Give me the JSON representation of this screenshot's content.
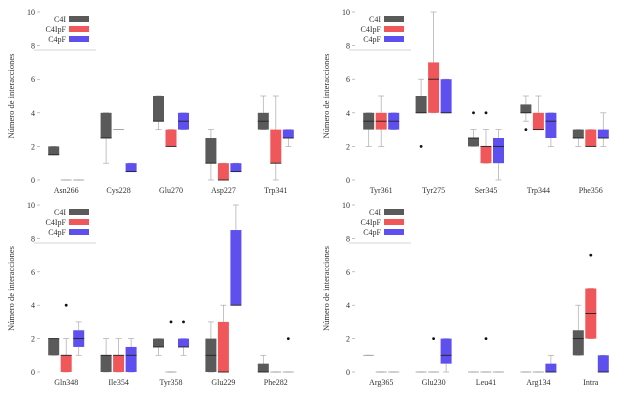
{
  "chart_data": [
    {
      "type": "box",
      "ylabel": "Número de interacciones",
      "ylim": [
        0,
        10
      ],
      "yticks": [
        0,
        2,
        4,
        6,
        8,
        10
      ],
      "legend": {
        "placement": "top-left",
        "entries": [
          "C4I",
          "C4IpF",
          "C4pF"
        ]
      },
      "colors": {
        "C4I": "#5a5a5a",
        "C4IpF": "#f0575a",
        "C4pF": "#5d50ee"
      },
      "categories": [
        "Asn266",
        "Cys228",
        "Glu270",
        "Asp227",
        "Trp341"
      ],
      "series": [
        {
          "name": "C4I",
          "boxes": [
            {
              "min": 1.5,
              "q1": 1.5,
              "median": 1.5,
              "q3": 2,
              "max": 2,
              "outliers": []
            },
            {
              "min": 1,
              "q1": 2.5,
              "median": 2.5,
              "q3": 4,
              "max": 4,
              "outliers": []
            },
            {
              "min": 3,
              "q1": 3.5,
              "median": 3.5,
              "q3": 5,
              "max": 5,
              "outliers": []
            },
            {
              "min": 0,
              "q1": 1,
              "median": 1,
              "q3": 2.5,
              "max": 3,
              "outliers": []
            },
            {
              "min": 3,
              "q1": 3,
              "median": 3.5,
              "q3": 4,
              "max": 5,
              "outliers": []
            }
          ]
        },
        {
          "name": "C4IpF",
          "boxes": [
            {
              "min": 0,
              "q1": 0,
              "median": 0,
              "q3": 0,
              "max": 0,
              "outliers": []
            },
            {
              "min": 3,
              "q1": 3,
              "median": 3,
              "q3": 3,
              "max": 3,
              "outliers": []
            },
            {
              "min": 2,
              "q1": 2,
              "median": 2,
              "q3": 3,
              "max": 3,
              "outliers": []
            },
            {
              "min": 0,
              "q1": 0,
              "median": 0,
              "q3": 1,
              "max": 1,
              "outliers": []
            },
            {
              "min": 0,
              "q1": 1,
              "median": 1,
              "q3": 3,
              "max": 5,
              "outliers": []
            }
          ]
        },
        {
          "name": "C4pF",
          "boxes": [
            {
              "min": 0,
              "q1": 0,
              "median": 0,
              "q3": 0,
              "max": 0,
              "outliers": []
            },
            {
              "min": 0.5,
              "q1": 0.5,
              "median": 0.5,
              "q3": 1,
              "max": 1,
              "outliers": []
            },
            {
              "min": 3,
              "q1": 3,
              "median": 3.5,
              "q3": 4,
              "max": 4,
              "outliers": []
            },
            {
              "min": 0.5,
              "q1": 0.5,
              "median": 0.5,
              "q3": 1,
              "max": 1,
              "outliers": []
            },
            {
              "min": 2,
              "q1": 2.5,
              "median": 2.5,
              "q3": 3,
              "max": 3,
              "outliers": []
            }
          ]
        }
      ]
    },
    {
      "type": "box",
      "ylabel": "Número de interacciones",
      "ylim": [
        0,
        10
      ],
      "yticks": [
        0,
        2,
        4,
        6,
        8,
        10
      ],
      "legend": {
        "placement": "top-left",
        "entries": [
          "C4I",
          "C4IpF",
          "C4pF"
        ]
      },
      "colors": {
        "C4I": "#5a5a5a",
        "C4IpF": "#f0575a",
        "C4pF": "#5d50ee"
      },
      "categories": [
        "Tyr361",
        "Tyr275",
        "Ser345",
        "Trp344",
        "Phe356"
      ],
      "series": [
        {
          "name": "C4I",
          "boxes": [
            {
              "min": 2,
              "q1": 3,
              "median": 3.5,
              "q3": 4,
              "max": 4,
              "outliers": []
            },
            {
              "min": 4,
              "q1": 4,
              "median": 4,
              "q3": 5,
              "max": 6,
              "outliers": [
                2
              ]
            },
            {
              "min": 2,
              "q1": 2,
              "median": 2.5,
              "q3": 2.5,
              "max": 3,
              "outliers": [
                4
              ]
            },
            {
              "min": 3.5,
              "q1": 4,
              "median": 4,
              "q3": 4.5,
              "max": 5,
              "outliers": [
                3
              ]
            },
            {
              "min": 2,
              "q1": 2.5,
              "median": 2.5,
              "q3": 3,
              "max": 3,
              "outliers": []
            }
          ]
        },
        {
          "name": "C4IpF",
          "boxes": [
            {
              "min": 2,
              "q1": 3,
              "median": 3.5,
              "q3": 4,
              "max": 5,
              "outliers": []
            },
            {
              "min": 4,
              "q1": 4,
              "median": 6,
              "q3": 7,
              "max": 10,
              "outliers": []
            },
            {
              "min": 1,
              "q1": 1,
              "median": 2,
              "q3": 2,
              "max": 3,
              "outliers": [
                4
              ]
            },
            {
              "min": 3,
              "q1": 3,
              "median": 3,
              "q3": 4,
              "max": 5,
              "outliers": []
            },
            {
              "min": 2,
              "q1": 2,
              "median": 2,
              "q3": 3,
              "max": 3,
              "outliers": []
            }
          ]
        },
        {
          "name": "C4pF",
          "boxes": [
            {
              "min": 3,
              "q1": 3,
              "median": 3.5,
              "q3": 4,
              "max": 4,
              "outliers": []
            },
            {
              "min": 4,
              "q1": 4,
              "median": 4,
              "q3": 6,
              "max": 6,
              "outliers": []
            },
            {
              "min": 0,
              "q1": 1,
              "median": 2,
              "q3": 2.5,
              "max": 3,
              "outliers": []
            },
            {
              "min": 2,
              "q1": 2.5,
              "median": 3.5,
              "q3": 4,
              "max": 4,
              "outliers": []
            },
            {
              "min": 2,
              "q1": 2.5,
              "median": 2.5,
              "q3": 3,
              "max": 4,
              "outliers": []
            }
          ]
        }
      ]
    },
    {
      "type": "box",
      "ylabel": "Número de interacciones",
      "ylim": [
        0,
        10
      ],
      "yticks": [
        0,
        2,
        4,
        6,
        8,
        10
      ],
      "legend": {
        "placement": "top-left",
        "entries": [
          "C4I",
          "C4IpF",
          "C4pF"
        ]
      },
      "colors": {
        "C4I": "#5a5a5a",
        "C4IpF": "#f0575a",
        "C4pF": "#5d50ee"
      },
      "categories": [
        "Gln348",
        "Ile354",
        "Tyr358",
        "Glu229",
        "Phe282"
      ],
      "series": [
        {
          "name": "C4I",
          "boxes": [
            {
              "min": 1,
              "q1": 1,
              "median": 2,
              "q3": 2,
              "max": 2,
              "outliers": []
            },
            {
              "min": 0,
              "q1": 0,
              "median": 1,
              "q3": 1,
              "max": 2,
              "outliers": []
            },
            {
              "min": 1,
              "q1": 1.5,
              "median": 1.5,
              "q3": 2,
              "max": 2,
              "outliers": []
            },
            {
              "min": 0,
              "q1": 0,
              "median": 1,
              "q3": 2,
              "max": 3,
              "outliers": []
            },
            {
              "min": 0,
              "q1": 0,
              "median": 0,
              "q3": 0.5,
              "max": 1,
              "outliers": []
            }
          ]
        },
        {
          "name": "C4IpF",
          "boxes": [
            {
              "min": 0,
              "q1": 0,
              "median": 1,
              "q3": 1,
              "max": 2,
              "outliers": [
                4
              ]
            },
            {
              "min": 0,
              "q1": 0,
              "median": 1,
              "q3": 1,
              "max": 2,
              "outliers": []
            },
            {
              "min": 0,
              "q1": 0,
              "median": 0,
              "q3": 0,
              "max": 0,
              "outliers": [
                3
              ]
            },
            {
              "min": 0,
              "q1": 0,
              "median": 0,
              "q3": 3,
              "max": 4,
              "outliers": []
            },
            {
              "min": 0,
              "q1": 0,
              "median": 0,
              "q3": 0,
              "max": 0,
              "outliers": []
            }
          ]
        },
        {
          "name": "C4pF",
          "boxes": [
            {
              "min": 1,
              "q1": 1.5,
              "median": 2,
              "q3": 2.5,
              "max": 3,
              "outliers": []
            },
            {
              "min": 0,
              "q1": 0,
              "median": 1,
              "q3": 1.5,
              "max": 2,
              "outliers": []
            },
            {
              "min": 1,
              "q1": 1.5,
              "median": 1.5,
              "q3": 2,
              "max": 2,
              "outliers": [
                3
              ]
            },
            {
              "min": 4,
              "q1": 4,
              "median": 4,
              "q3": 8.5,
              "max": 10,
              "outliers": []
            },
            {
              "min": 0,
              "q1": 0,
              "median": 0,
              "q3": 0,
              "max": 0,
              "outliers": [
                2
              ]
            }
          ]
        }
      ]
    },
    {
      "type": "box",
      "ylabel": "Número de interacciones",
      "ylim": [
        0,
        10
      ],
      "yticks": [
        0,
        2,
        4,
        6,
        8,
        10
      ],
      "legend": {
        "placement": "top-left",
        "entries": [
          "C4I",
          "C4IpF",
          "C4pF"
        ]
      },
      "colors": {
        "C4I": "#5a5a5a",
        "C4IpF": "#f0575a",
        "C4pF": "#5d50ee"
      },
      "categories": [
        "Arg365",
        "Glu230",
        "Leu41",
        "Arg134",
        "Intra"
      ],
      "series": [
        {
          "name": "C4I",
          "boxes": [
            {
              "min": 1,
              "q1": 1,
              "median": 1,
              "q3": 1,
              "max": 1,
              "outliers": []
            },
            {
              "min": 0,
              "q1": 0,
              "median": 0,
              "q3": 0,
              "max": 0,
              "outliers": []
            },
            {
              "min": 0,
              "q1": 0,
              "median": 0,
              "q3": 0,
              "max": 0,
              "outliers": []
            },
            {
              "min": 0,
              "q1": 0,
              "median": 0,
              "q3": 0,
              "max": 0,
              "outliers": []
            },
            {
              "min": 1,
              "q1": 1,
              "median": 2,
              "q3": 2.5,
              "max": 4,
              "outliers": []
            }
          ]
        },
        {
          "name": "C4IpF",
          "boxes": [
            {
              "min": 0,
              "q1": 0,
              "median": 0,
              "q3": 0,
              "max": 0,
              "outliers": []
            },
            {
              "min": 0,
              "q1": 0,
              "median": 0,
              "q3": 0,
              "max": 0,
              "outliers": [
                2
              ]
            },
            {
              "min": 0,
              "q1": 0,
              "median": 0,
              "q3": 0,
              "max": 0,
              "outliers": [
                2
              ]
            },
            {
              "min": 0,
              "q1": 0,
              "median": 0,
              "q3": 0,
              "max": 0,
              "outliers": []
            },
            {
              "min": 2,
              "q1": 2,
              "median": 3.5,
              "q3": 5,
              "max": 5,
              "outliers": [
                7
              ]
            }
          ]
        },
        {
          "name": "C4pF",
          "boxes": [
            {
              "min": 0,
              "q1": 0,
              "median": 0,
              "q3": 0,
              "max": 0,
              "outliers": []
            },
            {
              "min": 0,
              "q1": 0.5,
              "median": 1,
              "q3": 2,
              "max": 2,
              "outliers": []
            },
            {
              "min": 0,
              "q1": 0,
              "median": 0,
              "q3": 0,
              "max": 0,
              "outliers": []
            },
            {
              "min": 0,
              "q1": 0,
              "median": 0,
              "q3": 0.5,
              "max": 1,
              "outliers": []
            },
            {
              "min": 0,
              "q1": 0,
              "median": 0,
              "q3": 1,
              "max": 1,
              "outliers": []
            }
          ]
        }
      ]
    }
  ]
}
